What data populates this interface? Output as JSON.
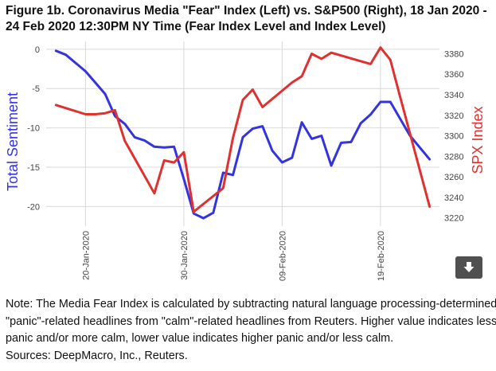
{
  "title_line1": "Figure 1b. Coronavirus Media \"Fear\" Index (Left) vs. S&P500 (Right), 18 Jan 2020 -",
  "title_line2": "24 Feb 2020 12:30PM NY Time (Fear Index Level and Index Level)",
  "note_lines": [
    "Note: The Media Fear Index is calculated by subtracting natural language processing-determined",
    "\"panic\"-related headlines from \"calm\"-related headlines from Reuters. Higher value indicates less",
    "panic and/or more calm, lower value indicates higher panic and/or less calm.",
    "Sources: DeepMacro, Inc., Reuters."
  ],
  "download_icon": "download-icon",
  "chart_data": {
    "type": "line",
    "x_ticks": [
      "20-Jan-2020",
      "30-Jan-2020",
      "09-Feb-2020",
      "19-Feb-2020"
    ],
    "x_tick_dates": [
      "2020-01-20",
      "2020-01-30",
      "2020-02-09",
      "2020-02-19"
    ],
    "xlim": [
      "2020-01-16",
      "2020-02-25"
    ],
    "y_left": {
      "label": "Total Sentiment",
      "lim": [
        -22.5,
        1
      ],
      "ticks": [
        0,
        -5,
        -10,
        -15,
        -20
      ],
      "color": "#3333e0"
    },
    "y_right": {
      "label": "SPX Index",
      "lim": [
        3212,
        3392
      ],
      "ticks": [
        3220,
        3240,
        3260,
        3280,
        3300,
        3320,
        3340,
        3360,
        3380
      ],
      "color": "#e03030"
    },
    "grid": true,
    "series": [
      {
        "axis": "left",
        "color": "#3333e0",
        "x": [
          "2020-01-17",
          "2020-01-18",
          "2020-01-20",
          "2020-01-22",
          "2020-01-23",
          "2020-01-24",
          "2020-01-25",
          "2020-01-26",
          "2020-01-27",
          "2020-01-28",
          "2020-01-29",
          "2020-01-30",
          "2020-01-31",
          "2020-02-01",
          "2020-02-02",
          "2020-02-03",
          "2020-02-04",
          "2020-02-05",
          "2020-02-06",
          "2020-02-07",
          "2020-02-08",
          "2020-02-09",
          "2020-02-10",
          "2020-02-11",
          "2020-02-12",
          "2020-02-13",
          "2020-02-14",
          "2020-02-15",
          "2020-02-16",
          "2020-02-17",
          "2020-02-18",
          "2020-02-19",
          "2020-02-20",
          "2020-02-22",
          "2020-02-24"
        ],
        "y": [
          -0.2,
          -0.7,
          -2.8,
          -5.7,
          -8.5,
          -9.5,
          -11.2,
          -11.6,
          -12.4,
          -12.5,
          -12.4,
          -16.5,
          -20.9,
          -21.5,
          -20.8,
          -15.7,
          -16.0,
          -11.2,
          -10.1,
          -9.8,
          -12.9,
          -14.4,
          -13.8,
          -9.3,
          -11.4,
          -11.0,
          -14.8,
          -11.9,
          -11.8,
          -9.4,
          -8.3,
          -6.7,
          -6.7,
          -11.0,
          -14.0
        ]
      },
      {
        "axis": "right",
        "color": "#e03030",
        "x": [
          "2020-01-17",
          "2020-01-20",
          "2020-01-21",
          "2020-01-22",
          "2020-01-23",
          "2020-01-24",
          "2020-01-27",
          "2020-01-28",
          "2020-01-29",
          "2020-01-30",
          "2020-01-31",
          "2020-02-03",
          "2020-02-04",
          "2020-02-05",
          "2020-02-06",
          "2020-02-07",
          "2020-02-10",
          "2020-02-11",
          "2020-02-12",
          "2020-02-13",
          "2020-02-14",
          "2020-02-18",
          "2020-02-19",
          "2020-02-20",
          "2020-02-21",
          "2020-02-24"
        ],
        "y": [
          3330,
          3321,
          3321,
          3322,
          3325,
          3295,
          3244,
          3276,
          3274,
          3284,
          3226,
          3249,
          3298,
          3335,
          3345,
          3328,
          3352,
          3358,
          3380,
          3375,
          3381,
          3370,
          3386,
          3374,
          3338,
          3231
        ]
      }
    ]
  }
}
